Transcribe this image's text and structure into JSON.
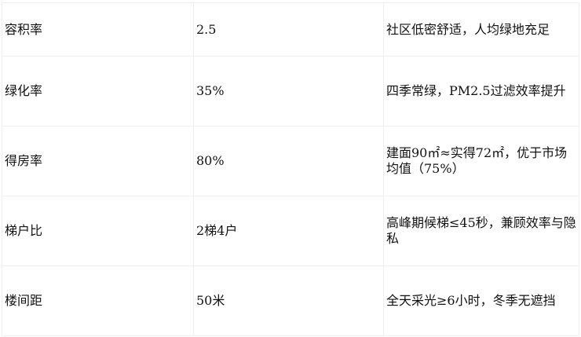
{
  "rows": [
    {
      "name": "容积率",
      "value": "2.5",
      "note": "社区低密舒适，人均绿地充足"
    },
    {
      "name": "绿化率",
      "value": "35%",
      "note": "四季常绿，PM2.5过滤效率提升"
    },
    {
      "name": "得房率",
      "value": "80%",
      "note": "建面90㎡≈实得72㎡，优于市场均值（75%）"
    },
    {
      "name": "梯户比",
      "value": "2梯4户",
      "note": "高峰期候梯≤45秒，兼顾效率与隐私"
    },
    {
      "name": "楼间距",
      "value": "50米",
      "note": "全天采光≥6小时，冬季无遮挡"
    }
  ]
}
